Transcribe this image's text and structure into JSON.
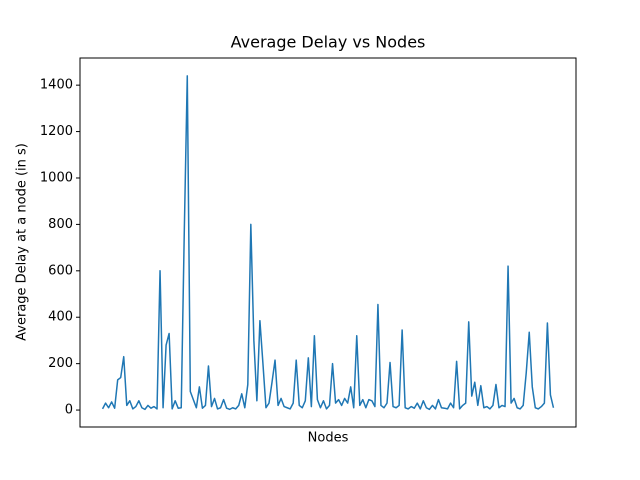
{
  "chart_data": {
    "type": "line",
    "title": "Average Delay vs Nodes",
    "x_label": "Nodes",
    "y_label": "Average Delay at a node (in s)",
    "x": [
      0,
      1,
      2,
      3,
      4,
      5,
      6,
      7,
      8,
      9,
      10,
      11,
      12,
      13,
      14,
      15,
      16,
      17,
      18,
      19,
      20,
      21,
      22,
      23,
      24,
      25,
      26,
      27,
      28,
      29,
      30,
      31,
      32,
      33,
      34,
      35,
      36,
      37,
      38,
      39,
      40,
      41,
      42,
      43,
      44,
      45,
      46,
      47,
      48,
      49,
      50,
      51,
      52,
      53,
      54,
      55,
      56,
      57,
      58,
      59,
      60,
      61,
      62,
      63,
      64,
      65,
      66,
      67,
      68,
      69,
      70,
      71,
      72,
      73,
      74,
      75,
      76,
      77,
      78,
      79,
      80,
      81,
      82,
      83,
      84,
      85,
      86,
      87,
      88,
      89,
      90,
      91,
      92,
      93,
      94,
      95,
      96,
      97,
      98,
      99,
      100,
      101,
      102,
      103,
      104,
      105,
      106,
      107,
      108,
      109,
      110,
      111,
      112,
      113,
      114,
      115,
      116,
      117,
      118,
      119,
      120,
      121,
      122,
      123,
      124,
      125,
      126,
      127,
      128,
      129,
      130,
      131,
      132,
      133,
      134,
      135,
      136,
      137,
      138,
      139,
      140,
      141,
      142,
      143,
      144,
      145,
      146,
      147,
      148,
      149
    ],
    "series": [
      {
        "color": "#1f77b4",
        "values": [
          5,
          30,
          10,
          35,
          8,
          130,
          140,
          230,
          20,
          40,
          5,
          15,
          40,
          10,
          3,
          20,
          8,
          15,
          5,
          600,
          10,
          280,
          330,
          5,
          40,
          8,
          10,
          760,
          1440,
          80,
          45,
          10,
          100,
          8,
          20,
          190,
          15,
          50,
          5,
          10,
          45,
          8,
          3,
          10,
          5,
          20,
          70,
          10,
          110,
          800,
          300,
          40,
          385,
          200,
          10,
          30,
          120,
          215,
          20,
          50,
          15,
          10,
          5,
          30,
          215,
          20,
          10,
          40,
          225,
          15,
          320,
          45,
          10,
          40,
          5,
          20,
          200,
          30,
          45,
          20,
          50,
          30,
          100,
          10,
          320,
          20,
          45,
          10,
          45,
          40,
          15,
          455,
          20,
          10,
          30,
          205,
          15,
          10,
          20,
          345,
          10,
          5,
          15,
          8,
          30,
          5,
          40,
          10,
          3,
          20,
          5,
          45,
          10,
          8,
          5,
          30,
          10,
          210,
          5,
          20,
          30,
          380,
          60,
          120,
          20,
          105,
          10,
          15,
          5,
          20,
          110,
          10,
          20,
          15,
          620,
          30,
          50,
          10,
          5,
          20,
          160,
          335,
          100,
          10,
          5,
          15,
          30,
          375,
          65,
          10
        ]
      }
    ],
    "xlim": [
      -7.45,
      156.45
    ],
    "ylim": [
      -73,
      1517
    ],
    "yticks": [
      0,
      200,
      400,
      600,
      800,
      1000,
      1200,
      1400
    ]
  }
}
